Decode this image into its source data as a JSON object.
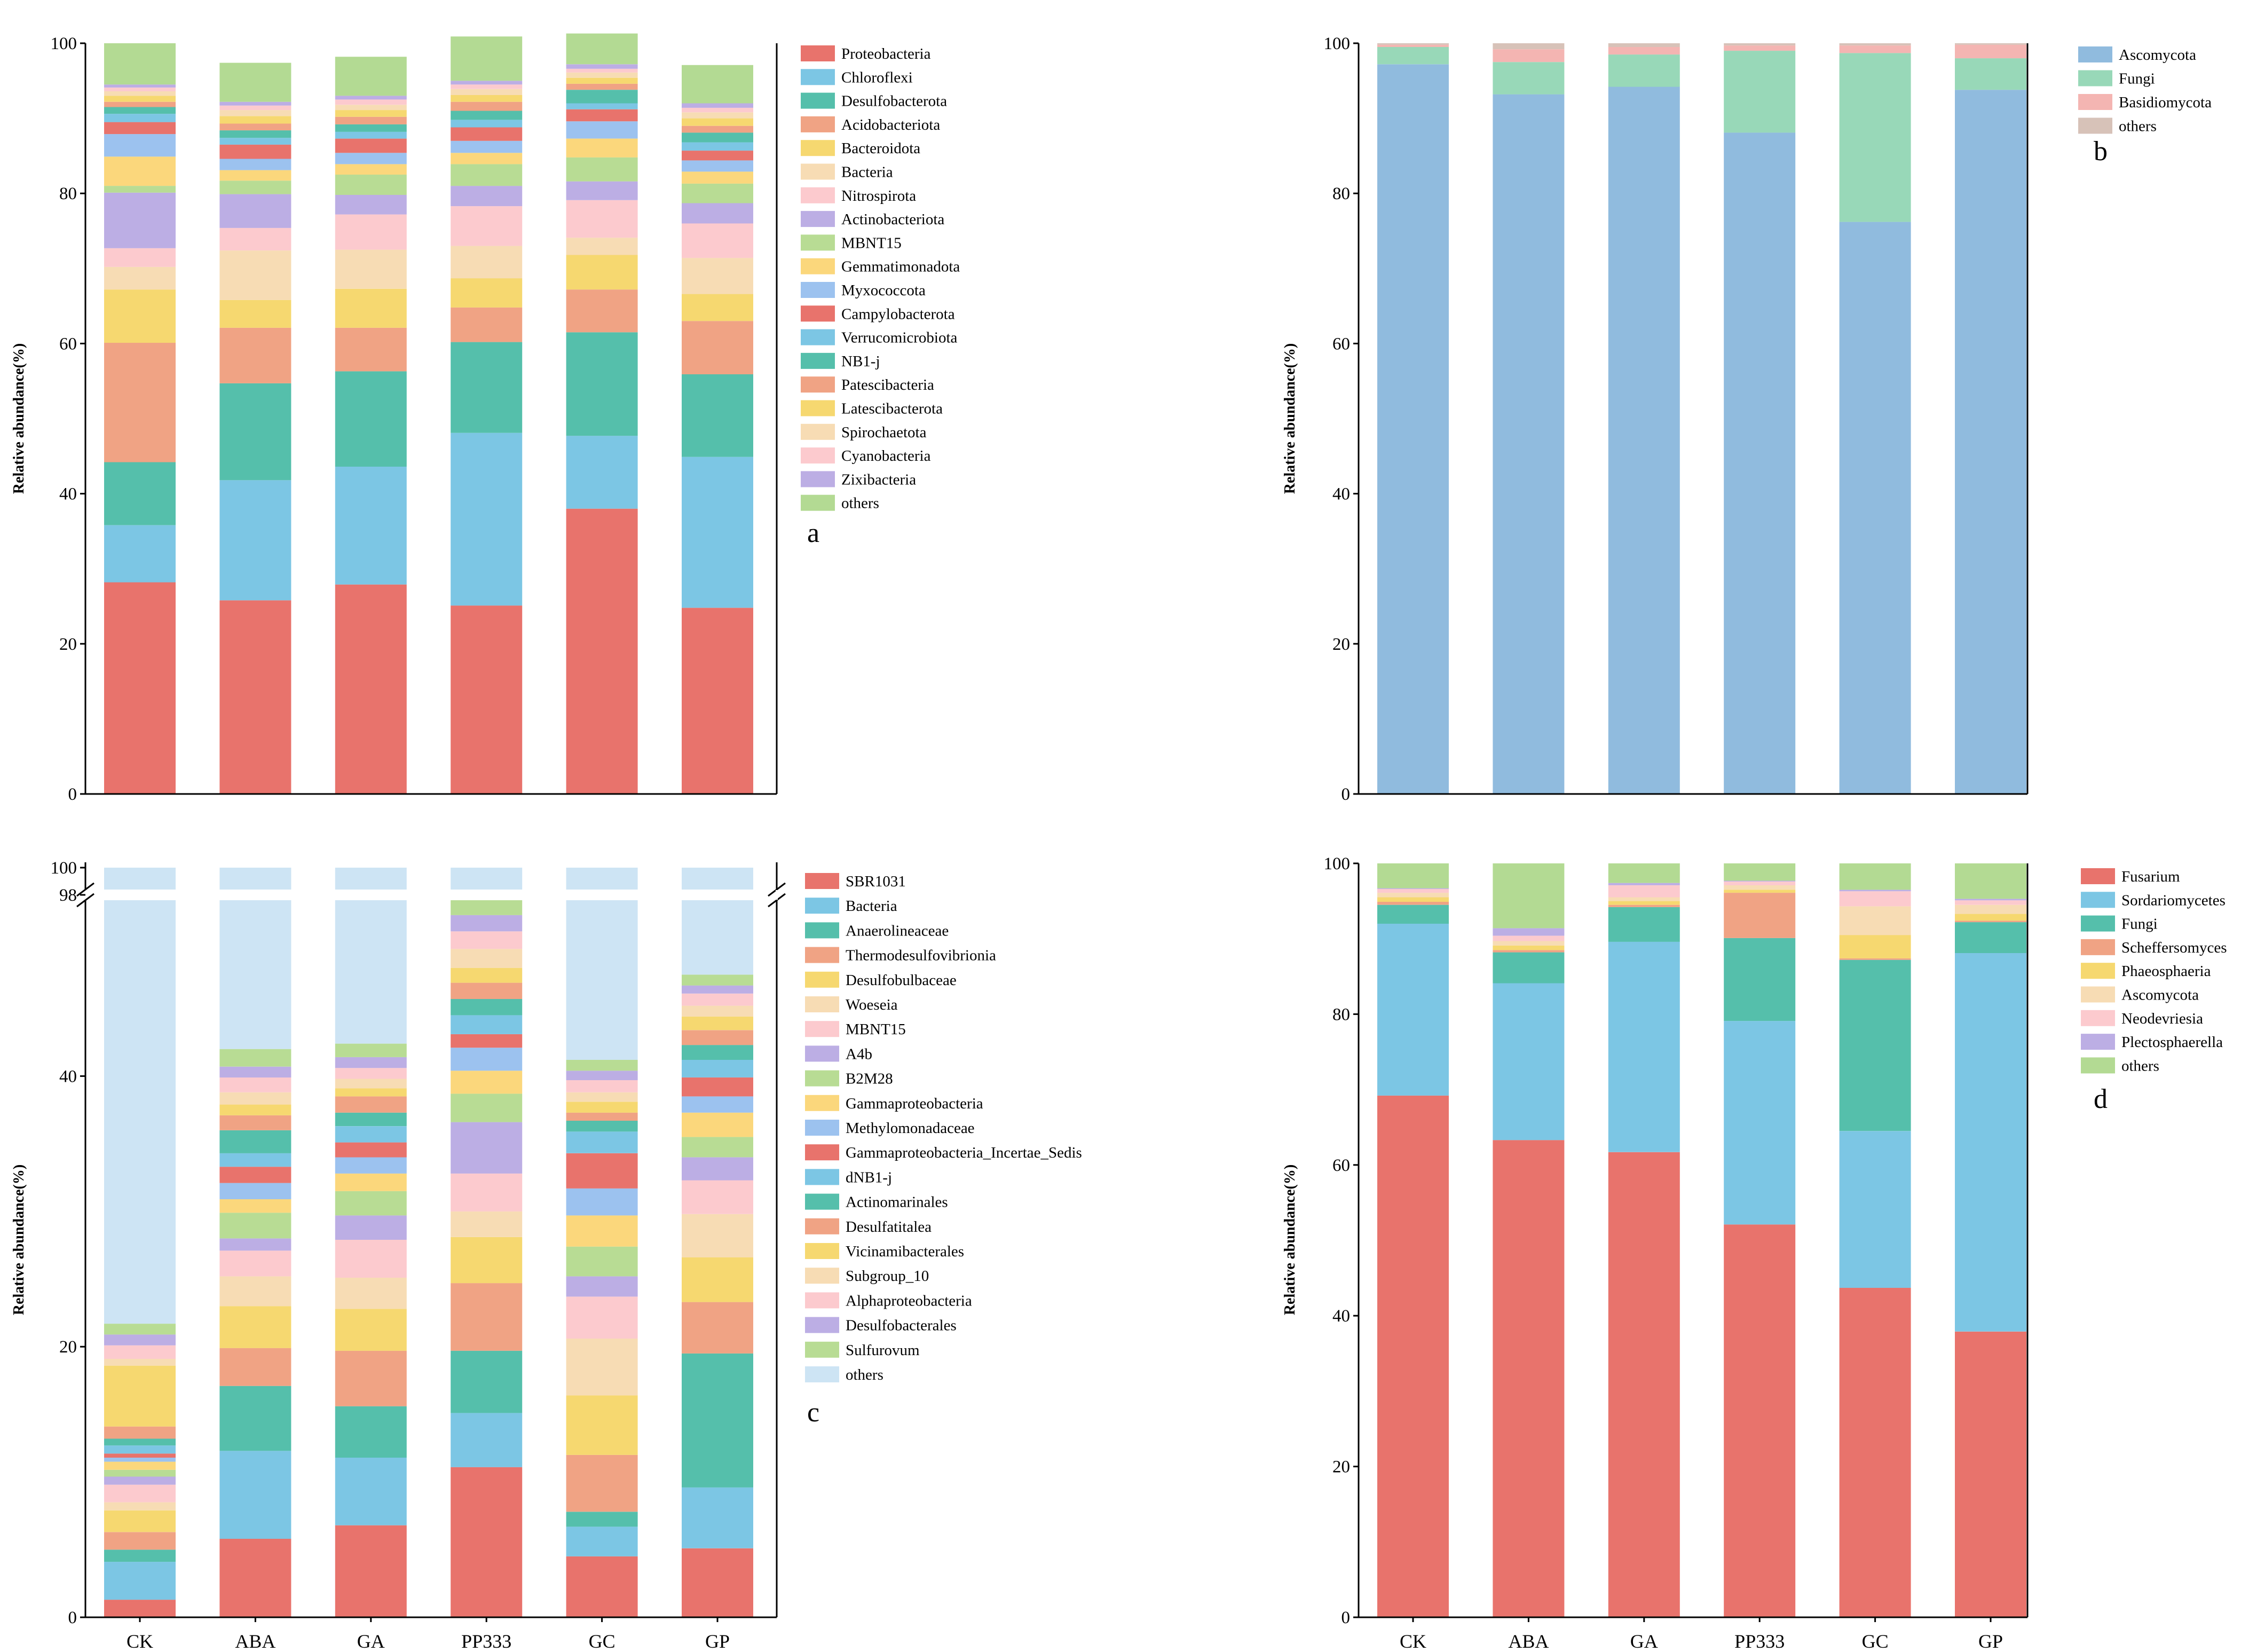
{
  "chart_data": [
    {
      "panel": "a",
      "type": "bar",
      "stacked": true,
      "ylabel": "Relative abundance(%)",
      "ylim": [
        0,
        100
      ],
      "yticks": [
        0,
        20,
        40,
        60,
        80,
        100
      ],
      "categories": [
        "CK",
        "ABA",
        "GA",
        "PP333",
        "GC",
        "GP"
      ],
      "legend_position": "right",
      "series": [
        {
          "name": "Proteobacteria",
          "color": "#e8736c",
          "values": [
            28.2,
            25.8,
            27.9,
            25.1,
            38.0,
            24.8
          ]
        },
        {
          "name": "Chloroflexi",
          "color": "#7cc6e4",
          "values": [
            7.6,
            16.0,
            15.7,
            23.0,
            9.7,
            20.1
          ]
        },
        {
          "name": "Desulfobacterota",
          "color": "#55bfab",
          "values": [
            8.4,
            12.9,
            12.7,
            12.1,
            13.8,
            11.0
          ]
        },
        {
          "name": "Acidobacteriota",
          "color": "#f0a384",
          "values": [
            15.9,
            7.4,
            5.8,
            4.6,
            5.7,
            7.1
          ]
        },
        {
          "name": "Bacteroidota",
          "color": "#f6d870",
          "values": [
            7.1,
            3.7,
            5.2,
            3.9,
            4.6,
            3.6
          ]
        },
        {
          "name": "Bacteria",
          "color": "#f7dcb4",
          "values": [
            3.0,
            6.6,
            5.2,
            4.3,
            2.3,
            4.8
          ]
        },
        {
          "name": "Nitrospirota",
          "color": "#fccace",
          "values": [
            2.5,
            3.0,
            4.7,
            5.3,
            5.0,
            4.6
          ]
        },
        {
          "name": "Actinobacteriota",
          "color": "#bcaee4",
          "values": [
            7.4,
            4.5,
            2.6,
            2.7,
            2.5,
            2.7
          ]
        },
        {
          "name": "MBNT15",
          "color": "#b8dc94",
          "values": [
            0.9,
            1.8,
            2.7,
            2.9,
            3.2,
            2.6
          ]
        },
        {
          "name": "Gemmatimonadota",
          "color": "#fbd77c",
          "values": [
            3.9,
            1.4,
            1.4,
            1.5,
            2.5,
            1.6
          ]
        },
        {
          "name": "Myxococcota",
          "color": "#9cc2ef",
          "values": [
            3.0,
            1.5,
            1.5,
            1.6,
            2.3,
            1.5
          ]
        },
        {
          "name": "Campylobacterota",
          "color": "#e8736c",
          "values": [
            1.6,
            1.9,
            1.9,
            1.8,
            1.6,
            1.3
          ]
        },
        {
          "name": "Verrucomicrobiota",
          "color": "#7cc6e4",
          "values": [
            1.1,
            0.9,
            0.9,
            1.0,
            0.8,
            1.1
          ]
        },
        {
          "name": "NB1-j",
          "color": "#55bfab",
          "values": [
            0.9,
            1.0,
            1.0,
            1.2,
            1.8,
            1.3
          ]
        },
        {
          "name": "Patescibacteria",
          "color": "#f0a384",
          "values": [
            0.7,
            0.9,
            1.0,
            1.2,
            0.8,
            0.9
          ]
        },
        {
          "name": "Latescibacterota",
          "color": "#f6d870",
          "values": [
            0.8,
            1.0,
            0.9,
            0.9,
            0.8,
            1.0
          ]
        },
        {
          "name": "Spirochaetota",
          "color": "#f7dcb4",
          "values": [
            0.6,
            0.8,
            0.7,
            0.8,
            0.7,
            0.8
          ]
        },
        {
          "name": "Cyanobacteria",
          "color": "#fccace",
          "values": [
            0.5,
            0.6,
            0.7,
            0.6,
            0.5,
            0.6
          ]
        },
        {
          "name": "Zixibacteria",
          "color": "#bcaee4",
          "values": [
            0.4,
            0.5,
            0.5,
            0.5,
            0.6,
            0.6
          ]
        },
        {
          "name": "others",
          "color": "#b3da93",
          "values": [
            5.5,
            5.2,
            5.2,
            5.9,
            4.1,
            5.1
          ]
        }
      ]
    },
    {
      "panel": "b",
      "type": "bar",
      "stacked": true,
      "ylabel": "Relative abundance(%)",
      "ylim": [
        0,
        100
      ],
      "yticks": [
        0,
        20,
        40,
        60,
        80,
        100
      ],
      "categories": [
        "CK",
        "ABA",
        "GA",
        "PP333",
        "GC",
        "GP"
      ],
      "legend_position": "right",
      "series": [
        {
          "name": "Ascomycota",
          "color": "#90bbde",
          "values": [
            97.2,
            93.2,
            94.2,
            88.1,
            76.2,
            93.8
          ]
        },
        {
          "name": "Fungi",
          "color": "#98d8b8",
          "values": [
            2.3,
            4.3,
            4.3,
            10.9,
            22.5,
            4.2
          ]
        },
        {
          "name": "Basidiomycota",
          "color": "#f4b5b2",
          "values": [
            0.3,
            1.7,
            1.0,
            0.7,
            1.0,
            1.8
          ]
        },
        {
          "name": "others",
          "color": "#d7c2b8",
          "values": [
            0.2,
            0.8,
            0.5,
            0.3,
            0.3,
            0.2
          ]
        }
      ]
    },
    {
      "panel": "c",
      "type": "bar",
      "stacked": true,
      "ylabel": "Relative abundance(%)",
      "ylim": [
        0,
        100
      ],
      "axis_break": [
        53,
        98
      ],
      "yticks": [
        0,
        20,
        40,
        98,
        100
      ],
      "categories": [
        "CK",
        "ABA",
        "GA",
        "PP333",
        "GC",
        "GP"
      ],
      "legend_position": "right",
      "series": [
        {
          "name": "SBR1031",
          "color": "#e8736c",
          "values": [
            1.3,
            5.8,
            6.8,
            11.1,
            4.5,
            5.1
          ]
        },
        {
          "name": "Bacteria",
          "color": "#7cc6e4",
          "values": [
            2.8,
            6.5,
            5.0,
            4.0,
            2.2,
            4.5
          ]
        },
        {
          "name": "Anaerolineaceae",
          "color": "#55bfab",
          "values": [
            0.9,
            4.8,
            3.8,
            4.6,
            1.1,
            9.9
          ]
        },
        {
          "name": "Thermodesulfovibrionia",
          "color": "#f0a384",
          "values": [
            1.3,
            2.8,
            4.1,
            5.0,
            4.2,
            3.8
          ]
        },
        {
          "name": "Desulfobulbaceae",
          "color": "#f6d870",
          "values": [
            1.6,
            3.1,
            3.1,
            3.4,
            4.4,
            3.3
          ]
        },
        {
          "name": "Woeseia",
          "color": "#f7dcb4",
          "values": [
            0.6,
            2.2,
            2.3,
            1.9,
            4.2,
            3.2
          ]
        },
        {
          "name": "MBNT15",
          "color": "#fccace",
          "values": [
            1.3,
            1.9,
            2.8,
            2.8,
            3.1,
            2.5
          ]
        },
        {
          "name": "A4b",
          "color": "#bcaee4",
          "values": [
            0.6,
            0.9,
            1.8,
            3.8,
            1.5,
            1.7
          ]
        },
        {
          "name": "B2M28",
          "color": "#b8dc94",
          "values": [
            0.5,
            1.9,
            1.8,
            2.1,
            2.2,
            1.5
          ]
        },
        {
          "name": "Gammaproteobacteria",
          "color": "#fbd77c",
          "values": [
            0.6,
            1.0,
            1.3,
            1.7,
            2.3,
            1.8
          ]
        },
        {
          "name": "Methylomonadaceae",
          "color": "#9cc2ef",
          "values": [
            0.3,
            1.2,
            1.2,
            1.7,
            2.0,
            1.2
          ]
        },
        {
          "name": "Gammaproteobacteria_Incertae_Sedis",
          "color": "#e8736c",
          "values": [
            0.3,
            1.2,
            1.1,
            1.0,
            2.6,
            1.4
          ]
        },
        {
          "name": "dNB1-j",
          "color": "#7cc6e4",
          "values": [
            0.6,
            1.0,
            1.2,
            1.4,
            1.6,
            1.3
          ]
        },
        {
          "name": "Actinomarinales",
          "color": "#55bfab",
          "values": [
            0.5,
            1.7,
            1.0,
            1.2,
            0.8,
            1.1
          ]
        },
        {
          "name": "Desulfatitalea",
          "color": "#f0a384",
          "values": [
            0.9,
            1.1,
            1.2,
            1.2,
            0.6,
            1.1
          ]
        },
        {
          "name": "Vicinamibacterales",
          "color": "#f6d870",
          "values": [
            4.5,
            0.8,
            0.6,
            1.1,
            0.8,
            1.0
          ]
        },
        {
          "name": "Subgroup_10",
          "color": "#f7dcb4",
          "values": [
            0.5,
            0.9,
            0.7,
            1.4,
            0.7,
            0.8
          ]
        },
        {
          "name": "Alphaproteobacteria",
          "color": "#fccace",
          "values": [
            1.0,
            1.1,
            0.8,
            1.3,
            0.9,
            0.9
          ]
        },
        {
          "name": "Desulfobacterales",
          "color": "#bcaee4",
          "values": [
            0.8,
            0.8,
            0.8,
            1.2,
            0.7,
            0.6
          ]
        },
        {
          "name": "Sulfurovum",
          "color": "#b8dc94",
          "values": [
            0.8,
            1.3,
            1.0,
            1.6,
            0.8,
            0.8
          ]
        },
        {
          "name": "others",
          "color": "#cde4f4",
          "values": [
            78.3,
            58.0,
            56.6,
            45.7,
            57.1,
            52.8
          ]
        }
      ]
    },
    {
      "panel": "d",
      "type": "bar",
      "stacked": true,
      "ylabel": "Relative abundance(%)",
      "ylim": [
        0,
        100
      ],
      "yticks": [
        0,
        20,
        40,
        60,
        80,
        100
      ],
      "categories": [
        "CK",
        "ABA",
        "GA",
        "PP333",
        "GC",
        "GP"
      ],
      "legend_position": "right",
      "series": [
        {
          "name": "Fusarium",
          "color": "#e8736c",
          "values": [
            69.2,
            63.3,
            61.7,
            52.1,
            43.7,
            37.9
          ]
        },
        {
          "name": "Sordariomycetes",
          "color": "#7cc6e4",
          "values": [
            22.8,
            20.8,
            27.9,
            27.0,
            20.8,
            50.2
          ]
        },
        {
          "name": "Fungi",
          "color": "#55bfab",
          "values": [
            2.5,
            4.1,
            4.6,
            11.0,
            22.7,
            4.1
          ]
        },
        {
          "name": "Scheffersomyces",
          "color": "#f0a384",
          "values": [
            0.4,
            0.3,
            0.3,
            6.0,
            0.2,
            0.2
          ]
        },
        {
          "name": "Phaeosphaeria",
          "color": "#f6d870",
          "values": [
            0.6,
            0.6,
            0.5,
            0.4,
            3.1,
            0.9
          ]
        },
        {
          "name": "Ascomycota",
          "color": "#f7dcb4",
          "values": [
            0.6,
            0.6,
            0.5,
            0.6,
            3.8,
            1.2
          ]
        },
        {
          "name": "Neodevriesia",
          "color": "#fccace",
          "values": [
            0.5,
            0.7,
            1.6,
            0.5,
            2.0,
            0.6
          ]
        },
        {
          "name": "Plectosphaerella",
          "color": "#bcaee4",
          "values": [
            0.1,
            1.0,
            0.3,
            0.1,
            0.2,
            0.2
          ]
        },
        {
          "name": "others",
          "color": "#b3da93",
          "values": [
            3.3,
            8.6,
            2.6,
            2.3,
            3.5,
            4.7
          ]
        }
      ]
    }
  ]
}
